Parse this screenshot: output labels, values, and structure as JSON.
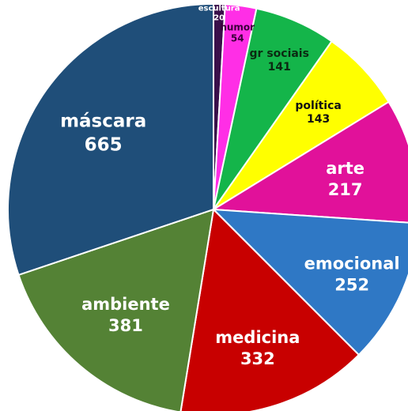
{
  "chart_data": {
    "type": "pie",
    "start_angle_deg": 0,
    "direction": "clockwise",
    "slices": [
      {
        "label": "escultura",
        "value": 20,
        "color": "#3a0f4a",
        "text_color": "#ffffff"
      },
      {
        "label": "humor",
        "value": 54,
        "color": "#ff2ee6",
        "text_color": "#3a003a"
      },
      {
        "label": "gr sociais",
        "value": 141,
        "color": "#14b54a",
        "text_color": "#0b2a12"
      },
      {
        "label": "política",
        "value": 143,
        "color": "#ffff00",
        "text_color": "#111111"
      },
      {
        "label": "arte",
        "value": 217,
        "color": "#e1119a",
        "text_color": "#ffffff"
      },
      {
        "label": "emocional",
        "value": 252,
        "color": "#2f78c5",
        "text_color": "#ffffff"
      },
      {
        "label": "medicina",
        "value": 332,
        "color": "#c80000",
        "text_color": "#ffffff"
      },
      {
        "label": "ambiente",
        "value": 381,
        "color": "#548235",
        "text_color": "#ffffff"
      },
      {
        "label": "máscara",
        "value": 665,
        "color": "#1f4e79",
        "text_color": "#ffffff"
      }
    ]
  }
}
